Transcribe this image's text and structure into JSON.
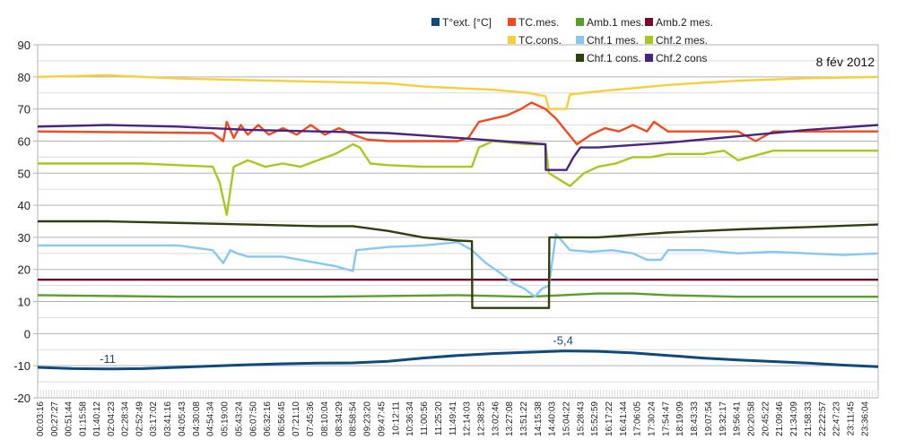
{
  "chart_data": {
    "type": "line",
    "title": "8 fév 2012",
    "xlabel": "",
    "ylabel": "",
    "ylim": [
      -20,
      90
    ],
    "yticks": [
      -20,
      -10,
      0,
      10,
      20,
      30,
      40,
      50,
      60,
      70,
      80,
      90
    ],
    "ytick_labels": [
      "-20",
      "-10",
      "0",
      "10",
      "20",
      "30",
      "40",
      "50",
      "60",
      "70",
      "80",
      "90"
    ],
    "grid": true,
    "legend_position": "top-right",
    "x_unit": "hours",
    "xlim": [
      0,
      24
    ],
    "xtick_labels": [
      "00:03:16",
      "00:27:27",
      "00:51:44",
      "01:15:58",
      "01:40:12",
      "02:04:23",
      "02:28:34",
      "02:52:49",
      "03:17:02",
      "03:41:16",
      "04:05:43",
      "04:30:08",
      "04:54:34",
      "05:19:00",
      "05:43:24",
      "06:07:50",
      "06:32:16",
      "06:56:45",
      "07:21:10",
      "07:45:36",
      "08:10:04",
      "08:34:29",
      "08:58:54",
      "09:23:20",
      "09:47:45",
      "10:12:11",
      "10:36:34",
      "11:00:56",
      "11:25:20",
      "11:49:41",
      "12:14:03",
      "12:38:25",
      "13:02:46",
      "13:27:08",
      "13:51:22",
      "14:15:38",
      "14:40:03",
      "15:04:22",
      "15:28:43",
      "15:52:59",
      "16:17:22",
      "16:41:44",
      "17:06:05",
      "17:30:24",
      "17:54:47",
      "18:19:09",
      "18:43:33",
      "19:07:54",
      "19:32:17",
      "19:56:41",
      "20:20:58",
      "20:45:22",
      "21:09:46",
      "21:34:09",
      "21:58:33",
      "22:22:57",
      "22:47:23",
      "23:11:45",
      "23:36:04"
    ],
    "annotations": [
      {
        "text": "-11",
        "x": 2.0,
        "y": -11
      },
      {
        "text": "-5,4",
        "x": 15.0,
        "y": -5.4
      }
    ],
    "series": [
      {
        "name": "T°ext. [°C]",
        "color": "#0e4a7e",
        "x": [
          0,
          1,
          2,
          3,
          4,
          5,
          6,
          7,
          8,
          9,
          10,
          11,
          12,
          13,
          14,
          15,
          16,
          17,
          18,
          19,
          20,
          21,
          22,
          23,
          24
        ],
        "y": [
          -10.5,
          -10.9,
          -11,
          -10.9,
          -10.5,
          -10.1,
          -9.7,
          -9.4,
          -9.2,
          -9.1,
          -8.6,
          -7.6,
          -6.8,
          -6.2,
          -5.8,
          -5.4,
          -5.5,
          -6.0,
          -6.8,
          -7.6,
          -8.2,
          -8.7,
          -9.2,
          -9.8,
          -10.3
        ]
      },
      {
        "name": "TC.mes.",
        "color": "#f24a1e",
        "x": [
          0,
          5,
          5.3,
          5.4,
          5.6,
          5.8,
          6.0,
          6.3,
          6.6,
          7,
          7.4,
          7.8,
          8.2,
          8.6,
          9.0,
          9.4,
          10,
          11,
          12,
          12.3,
          12.6,
          13.0,
          13.4,
          13.8,
          14.1,
          14.5,
          14.8,
          15.1,
          15.4,
          15.8,
          16.2,
          16.6,
          17.0,
          17.4,
          17.6,
          18,
          19,
          20,
          20.5,
          21,
          22,
          23,
          24
        ],
        "y": [
          63,
          62.5,
          60,
          66,
          61,
          65,
          62,
          65,
          62,
          64,
          62,
          65,
          62,
          64,
          62,
          60.5,
          60,
          60,
          60,
          61,
          66,
          67,
          68,
          70,
          72,
          70,
          67,
          63,
          59,
          62,
          64,
          63,
          65,
          63,
          66,
          63,
          63,
          63,
          60,
          63,
          63,
          63,
          63
        ]
      },
      {
        "name": "Amb.1 mes.",
        "color": "#5a9e2a",
        "x": [
          0,
          4,
          8,
          12,
          14,
          15,
          16,
          17,
          18,
          20,
          22,
          24
        ],
        "y": [
          12,
          11.5,
          11.5,
          12,
          11.5,
          12,
          12.5,
          12.5,
          12,
          11.5,
          11.5,
          11.5
        ]
      },
      {
        "name": "Amb.2 mes.",
        "color": "#7a0a2a",
        "x": [
          0,
          24
        ],
        "y": [
          16.8,
          16.8
        ]
      },
      {
        "name": "TC.cons.",
        "color": "#f7cf3a",
        "x": [
          0,
          2,
          4,
          6,
          8,
          10,
          11,
          12,
          13,
          14,
          14.5,
          14.6,
          15.1,
          15.2,
          16,
          17,
          18,
          19,
          20,
          21,
          22,
          23,
          24
        ],
        "y": [
          80,
          80.5,
          79.5,
          79,
          78.5,
          78,
          77,
          76.5,
          76,
          75,
          74,
          70,
          70,
          74.5,
          75.5,
          76.5,
          77.5,
          78.2,
          78.8,
          79.2,
          79.6,
          79.8,
          80
        ]
      },
      {
        "name": "Chf.1 mes.",
        "color": "#86c8f4",
        "x": [
          0,
          2,
          4,
          5,
          5.3,
          5.5,
          5.7,
          6,
          7,
          8,
          8.5,
          9.0,
          9.1,
          10,
          11,
          12,
          12.4,
          12.8,
          13.2,
          13.6,
          13.9,
          14.2,
          14.4,
          14.6,
          14.8,
          15.2,
          15.8,
          16.4,
          17.0,
          17.4,
          17.8,
          18,
          19,
          20,
          21,
          22,
          23,
          24
        ],
        "y": [
          27.5,
          27.5,
          27.5,
          26,
          22,
          26,
          25,
          24,
          24,
          22,
          21,
          19.5,
          26,
          27,
          27.5,
          28.5,
          26,
          22,
          19,
          15.5,
          14,
          11.5,
          14,
          15,
          31,
          26,
          25.5,
          26,
          25,
          23,
          23,
          26,
          26,
          25,
          25.5,
          25,
          24.5,
          25
        ]
      },
      {
        "name": "Chf.2 mes.",
        "color": "#a8c91c",
        "x": [
          0,
          1,
          2,
          3,
          4,
          5,
          5.2,
          5.4,
          5.6,
          6.0,
          6.5,
          7,
          7.5,
          8,
          8.5,
          9,
          9.2,
          9.5,
          10,
          11,
          12,
          12.4,
          12.6,
          13,
          14,
          14.5,
          14.6,
          15.2,
          15.6,
          16.0,
          16.5,
          17,
          17.5,
          18,
          19,
          19.6,
          20,
          21,
          22,
          23,
          24
        ],
        "y": [
          53,
          53,
          53,
          53,
          52.5,
          52,
          47,
          37,
          52,
          54,
          52,
          53,
          52,
          54,
          56,
          59,
          58,
          53,
          52.5,
          52,
          52,
          52,
          58,
          60,
          59,
          59,
          50,
          46,
          50,
          52,
          53,
          55,
          55,
          56,
          56,
          57,
          54,
          57,
          57,
          57,
          57
        ]
      },
      {
        "name": "Chf.1 cons.",
        "color": "#2f3f0e",
        "x": [
          0,
          2,
          4,
          6,
          8,
          9,
          10,
          11,
          11.5,
          12,
          12.4,
          12.41,
          14.6,
          14.61,
          16,
          18,
          20,
          22,
          24
        ],
        "y": [
          35,
          35,
          34.5,
          34,
          33.5,
          33.5,
          32,
          30,
          29.5,
          29,
          28.8,
          8,
          8,
          30,
          30,
          31.5,
          32.5,
          33.2,
          34
        ]
      },
      {
        "name": "Chf.2 cons",
        "color": "#4b2380",
        "x": [
          0,
          2,
          4,
          6,
          8,
          10,
          12,
          14.5,
          14.51,
          15.1,
          15.3,
          15.5,
          16,
          18,
          20,
          22,
          24
        ],
        "y": [
          64.5,
          65,
          64.5,
          63.5,
          63,
          62.5,
          61,
          59,
          51,
          51,
          55,
          58,
          58,
          59.5,
          61.5,
          63.5,
          65
        ]
      }
    ]
  },
  "legend": {
    "items": [
      "T°ext. [°C]",
      "TC.mes.",
      "Amb.1 mes.",
      "Amb.2 mes.",
      "TC.cons.",
      "Chf.1 mes.",
      "Chf.2 mes.",
      "Chf.1 cons.",
      "Chf.2 cons"
    ]
  },
  "date_label": "8 fév 2012"
}
